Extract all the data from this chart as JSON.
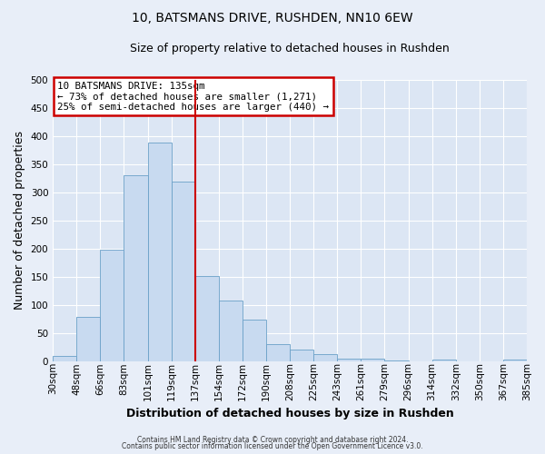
{
  "title": "10, BATSMANS DRIVE, RUSHDEN, NN10 6EW",
  "subtitle": "Size of property relative to detached houses in Rushden",
  "xlabel": "Distribution of detached houses by size in Rushden",
  "ylabel": "Number of detached properties",
  "bar_labels": [
    "30sqm",
    "48sqm",
    "66sqm",
    "83sqm",
    "101sqm",
    "119sqm",
    "137sqm",
    "154sqm",
    "172sqm",
    "190sqm",
    "208sqm",
    "225sqm",
    "243sqm",
    "261sqm",
    "279sqm",
    "296sqm",
    "314sqm",
    "332sqm",
    "350sqm",
    "367sqm",
    "385sqm"
  ],
  "bar_values": [
    9,
    78,
    198,
    331,
    388,
    320,
    151,
    108,
    73,
    30,
    20,
    13,
    5,
    4,
    1,
    0,
    3,
    0,
    0,
    3
  ],
  "bar_color": "#c8daf0",
  "bar_edge_color": "#6aa0c8",
  "vline_x": 6,
  "vline_color": "#cc0000",
  "ylim": [
    0,
    500
  ],
  "yticks": [
    0,
    50,
    100,
    150,
    200,
    250,
    300,
    350,
    400,
    450,
    500
  ],
  "annotation_title": "10 BATSMANS DRIVE: 135sqm",
  "annotation_line1": "← 73% of detached houses are smaller (1,271)",
  "annotation_line2": "25% of semi-detached houses are larger (440) →",
  "footer_line1": "Contains HM Land Registry data © Crown copyright and database right 2024.",
  "footer_line2": "Contains public sector information licensed under the Open Government Licence v3.0.",
  "bg_color": "#e8eef8",
  "plot_bg_color": "#dce6f4",
  "grid_color": "#ffffff",
  "title_fontsize": 10,
  "subtitle_fontsize": 9,
  "axis_label_fontsize": 9,
  "tick_fontsize": 7.5
}
